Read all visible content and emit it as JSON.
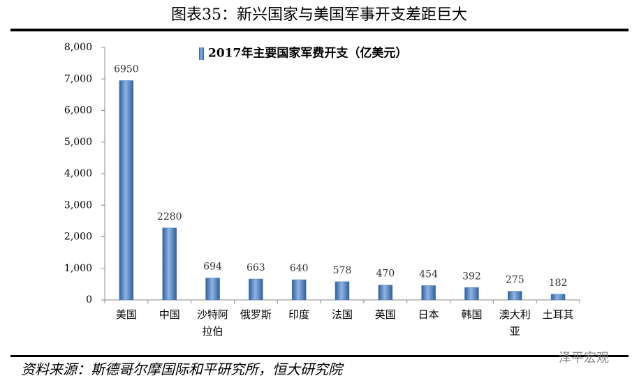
{
  "title": "图表35：新兴国家与美国军事开支差距巨大",
  "source": "资料来源：斯德哥尔摩国际和平研究所，恒大研究院",
  "watermark": "泽平宏观",
  "chart_data": {
    "type": "bar",
    "legend": "2017年主要国家军费开支（亿美元）",
    "categories": [
      "美国",
      "中国",
      "沙特阿拉伯",
      "俄罗斯",
      "印度",
      "法国",
      "英国",
      "日本",
      "韩国",
      "澳大利亚",
      "土耳其"
    ],
    "values": [
      6950,
      2280,
      694,
      663,
      640,
      578,
      470,
      454,
      392,
      275,
      182
    ],
    "color": "#4a7ebb",
    "ylim": [
      0,
      8000
    ],
    "yticks": [
      0,
      {
        "value": 1000,
        "label": "1,000"
      },
      {
        "value": 2000,
        "label": "2,000"
      },
      {
        "value": 3000,
        "label": "3,000"
      },
      {
        "value": 4000,
        "label": "4,000"
      },
      {
        "value": 5000,
        "label": "5,000"
      },
      {
        "value": 6000,
        "label": "6,000"
      },
      {
        "value": 7000,
        "label": "7,000"
      },
      {
        "value": 8000,
        "label": "8,000"
      }
    ],
    "grid": false
  }
}
